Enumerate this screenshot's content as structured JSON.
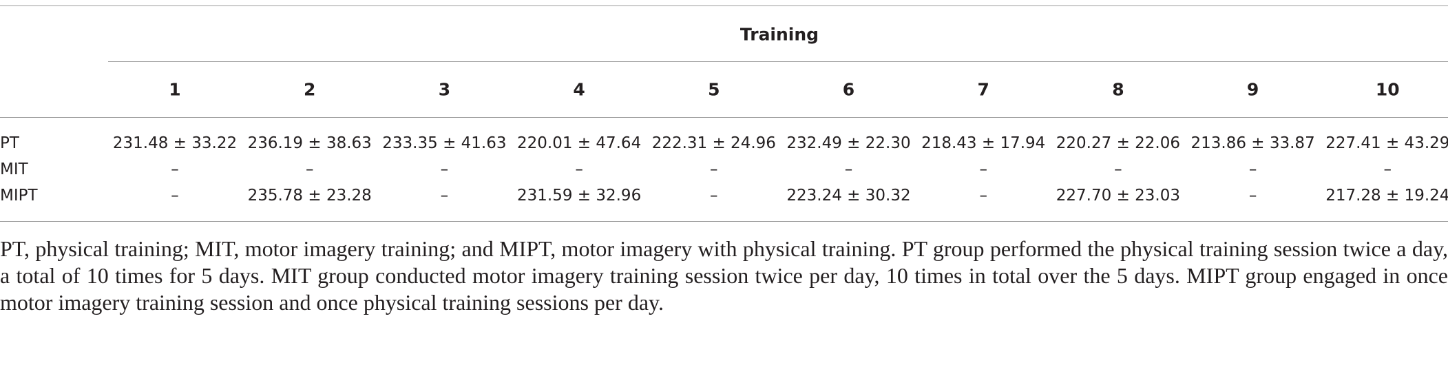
{
  "table": {
    "header": {
      "title": "Training"
    },
    "columns": [
      "1",
      "2",
      "3",
      "4",
      "5",
      "6",
      "7",
      "8",
      "9",
      "10"
    ],
    "rows": [
      {
        "label": "PT",
        "cells": [
          "231.48 ± 33.22",
          "236.19 ± 38.63",
          "233.35 ± 41.63",
          "220.01 ± 47.64",
          "222.31 ± 24.96",
          "232.49 ± 22.30",
          "218.43 ± 17.94",
          "220.27 ± 22.06",
          "213.86 ± 33.87",
          "227.41 ± 43.29"
        ]
      },
      {
        "label": "MIT",
        "cells": [
          "–",
          "–",
          "–",
          "–",
          "–",
          "–",
          "–",
          "–",
          "–",
          "–"
        ]
      },
      {
        "label": "MIPT",
        "cells": [
          "–",
          "235.78 ± 23.28",
          "–",
          "231.59 ± 32.96",
          "–",
          "223.24 ± 30.32",
          "–",
          "227.70 ± 23.03",
          "–",
          "217.28 ± 19.24"
        ]
      }
    ]
  },
  "caption": "PT, physical training; MIT, motor imagery training; and MIPT, motor imagery with physical training. PT group performed the physical training session twice a day, a total of 10 times for 5 days. MIT group conducted motor imagery training session twice per day, 10 times in total over the 5 days. MIPT group engaged in once motor imagery training session and once physical training sessions per day."
}
